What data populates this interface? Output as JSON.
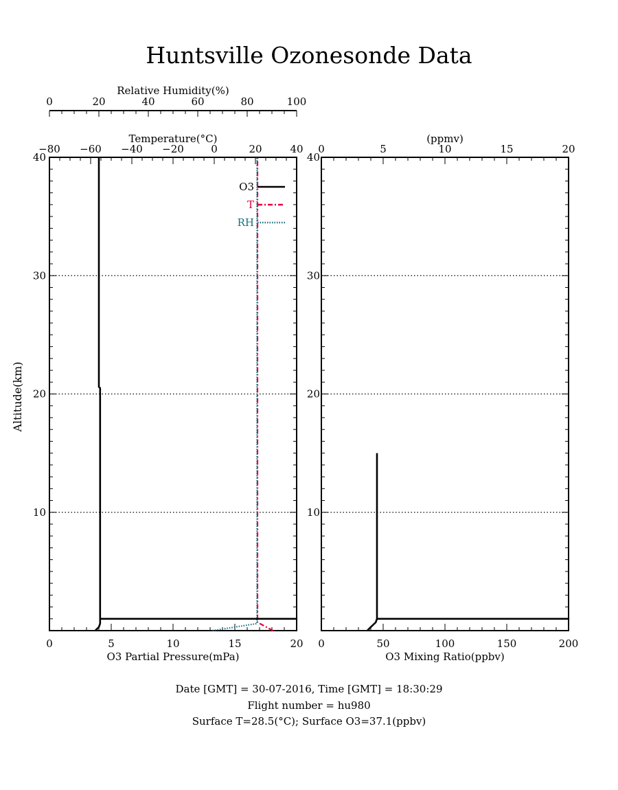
{
  "page_title": "Huntsville Ozonesonde Data",
  "footer": {
    "line1": "Date [GMT] = 30-07-2016,  Time [GMT] = 18:30:29",
    "line2": "Flight number = hu980",
    "line3": "Surface T=28.5(°C); Surface O3=37.1(ppbv)"
  },
  "colors": {
    "o3": "#000000",
    "temperature": "#e8003c",
    "rh": "#1a6e80",
    "grid": "#000000"
  },
  "chart_data": [
    {
      "type": "line",
      "panel": "left",
      "ylabel": "Altitude(km)",
      "ylim": [
        0,
        40
      ],
      "yticks": [
        10,
        20,
        30,
        40
      ],
      "grid": "horizontal dotted at 10, 20, 30 km",
      "legend": {
        "placement": "top-right",
        "entries": [
          "O3",
          "T",
          "RH"
        ]
      },
      "axes": {
        "o3": {
          "label": "O3 Partial Pressure(mPa)",
          "range": [
            0,
            20
          ],
          "ticks": [
            0,
            5,
            10,
            15,
            20
          ],
          "position": "bottom"
        },
        "temperature": {
          "label": "Temperature(°C)",
          "range": [
            -80,
            40
          ],
          "ticks": [
            -80,
            -60,
            -40,
            -20,
            0,
            20,
            40
          ],
          "position": "top"
        },
        "rh": {
          "label": "Relative Humidity(%)",
          "range": [
            0,
            100
          ],
          "ticks": [
            0,
            20,
            40,
            60,
            80,
            100
          ],
          "position": "top-outer"
        }
      },
      "series": [
        {
          "name": "O3",
          "axis": "o3",
          "points": [
            [
              3.7,
              0.0
            ],
            [
              4.0,
              0.3
            ],
            [
              4.1,
              0.6
            ],
            [
              4.1,
              1.0
            ],
            [
              20.0,
              1.0
            ],
            [
              4.1,
              1.0
            ],
            [
              4.1,
              20.5
            ],
            [
              4.0,
              20.6
            ],
            [
              4.0,
              40.0
            ]
          ]
        },
        {
          "name": "T",
          "axis": "temperature",
          "points": [
            [
              28.5,
              0.0
            ],
            [
              21.0,
              0.7
            ],
            [
              21.0,
              40.0
            ]
          ]
        },
        {
          "name": "RH",
          "axis": "rh",
          "points": [
            [
              66.0,
              0.0
            ],
            [
              84.0,
              0.6
            ],
            [
              84.0,
              40.0
            ]
          ]
        }
      ]
    },
    {
      "type": "line",
      "panel": "right",
      "ylim": [
        0,
        40
      ],
      "yticks": [
        10,
        20,
        30,
        40
      ],
      "grid": "horizontal dotted at 10, 20, 30 km",
      "axes": {
        "o3_ppbv": {
          "label": "O3 Mixing Ratio(ppbv)",
          "range": [
            0,
            200
          ],
          "ticks": [
            0,
            50,
            100,
            150,
            200
          ],
          "position": "bottom"
        },
        "o3_ppmv": {
          "label": "(ppmv)",
          "range": [
            0,
            20
          ],
          "ticks": [
            0,
            5,
            10,
            15,
            20
          ],
          "position": "top"
        }
      },
      "series": [
        {
          "name": "O3",
          "axis": "o3_ppbv",
          "points": [
            [
              37.1,
              0.0
            ],
            [
              40.0,
              0.3
            ],
            [
              44.0,
              0.7
            ],
            [
              45.0,
              1.0
            ],
            [
              200.0,
              1.0
            ],
            [
              45.0,
              1.0
            ],
            [
              45.0,
              15.0
            ]
          ]
        }
      ]
    }
  ]
}
